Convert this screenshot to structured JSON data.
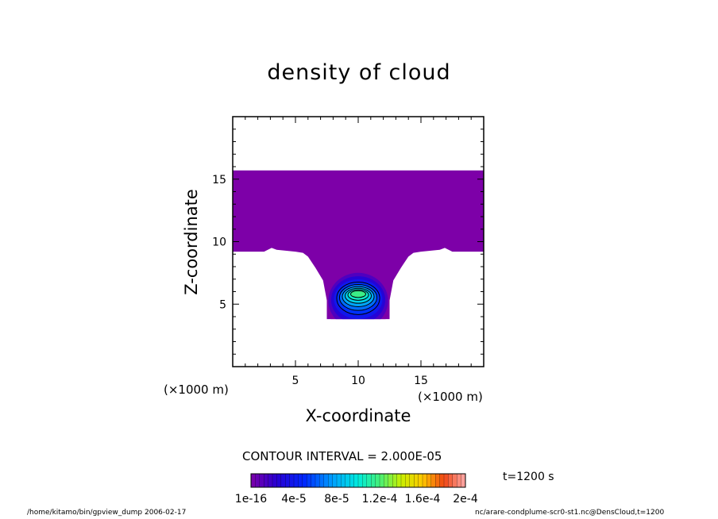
{
  "chart_data": {
    "type": "heatmap",
    "title": "density of cloud",
    "xlabel": "X-coordinate",
    "ylabel": "Z-coordinate",
    "x_unit": "(×1000 m)",
    "z_unit": "(×1000 m)",
    "xlim": [
      0,
      20
    ],
    "ylim": [
      0,
      20
    ],
    "xticks": [
      "5",
      "10",
      "15"
    ],
    "yticks": [
      "5",
      "10",
      "15"
    ],
    "contour_interval_text": "CONTOUR INTERVAL = 2.000E-05",
    "time_text": "t=1200 s",
    "colorbar": {
      "labels": [
        "1e-16",
        "4e-5",
        "8e-5",
        "1.2e-4",
        "1.6e-4",
        "2e-4"
      ],
      "min": 0,
      "max": 0.0002
    },
    "field": {
      "background_value": "1e-16",
      "layer_top": 15.7,
      "outside_boundary_z": 9.2,
      "plume_center_x": 10,
      "plume_bottom_z": 3.8,
      "plume_half_width": 2.5,
      "max_value": 0.000117
    }
  },
  "footer": {
    "left": "/home/kitamo/bin/gpview_dump  2006-02-17",
    "right": "nc/arare-condplume-scr0-st1.nc@DensCloud,t=1200"
  },
  "colors": {
    "background_purple": "#7d00a8",
    "contour_line": "#000000"
  }
}
